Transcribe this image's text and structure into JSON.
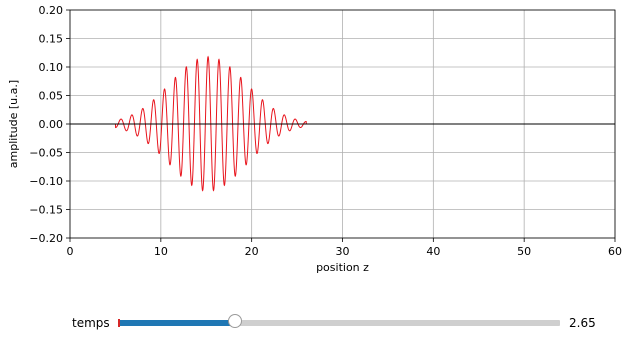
{
  "chart_data": {
    "type": "line",
    "xlabel": "position z",
    "ylabel": "amplitude [u.a.]",
    "xlim": [
      0,
      60
    ],
    "ylim": [
      -0.2,
      0.2
    ],
    "x_ticks": [
      "0",
      "10",
      "20",
      "30",
      "40",
      "50",
      "60"
    ],
    "y_ticks": [
      "0.20",
      "0.15",
      "0.10",
      "0.05",
      "0.00",
      "−0.05",
      "−0.10",
      "−0.15",
      "−0.20"
    ],
    "grid": true,
    "series": [
      {
        "color": "#e8141c",
        "wave": {
          "center": 15.2,
          "amplitude": 0.118,
          "envelope_sigma": 4.2,
          "wavelength": 1.2,
          "x_range": [
            5,
            26
          ]
        }
      },
      {
        "color": "#000000",
        "constant": 0.0
      }
    ]
  },
  "slider": {
    "label": "temps",
    "value_text": "2.65",
    "fraction": 0.265,
    "fill_color": "#1f77b4",
    "init_color": "#d62728"
  }
}
